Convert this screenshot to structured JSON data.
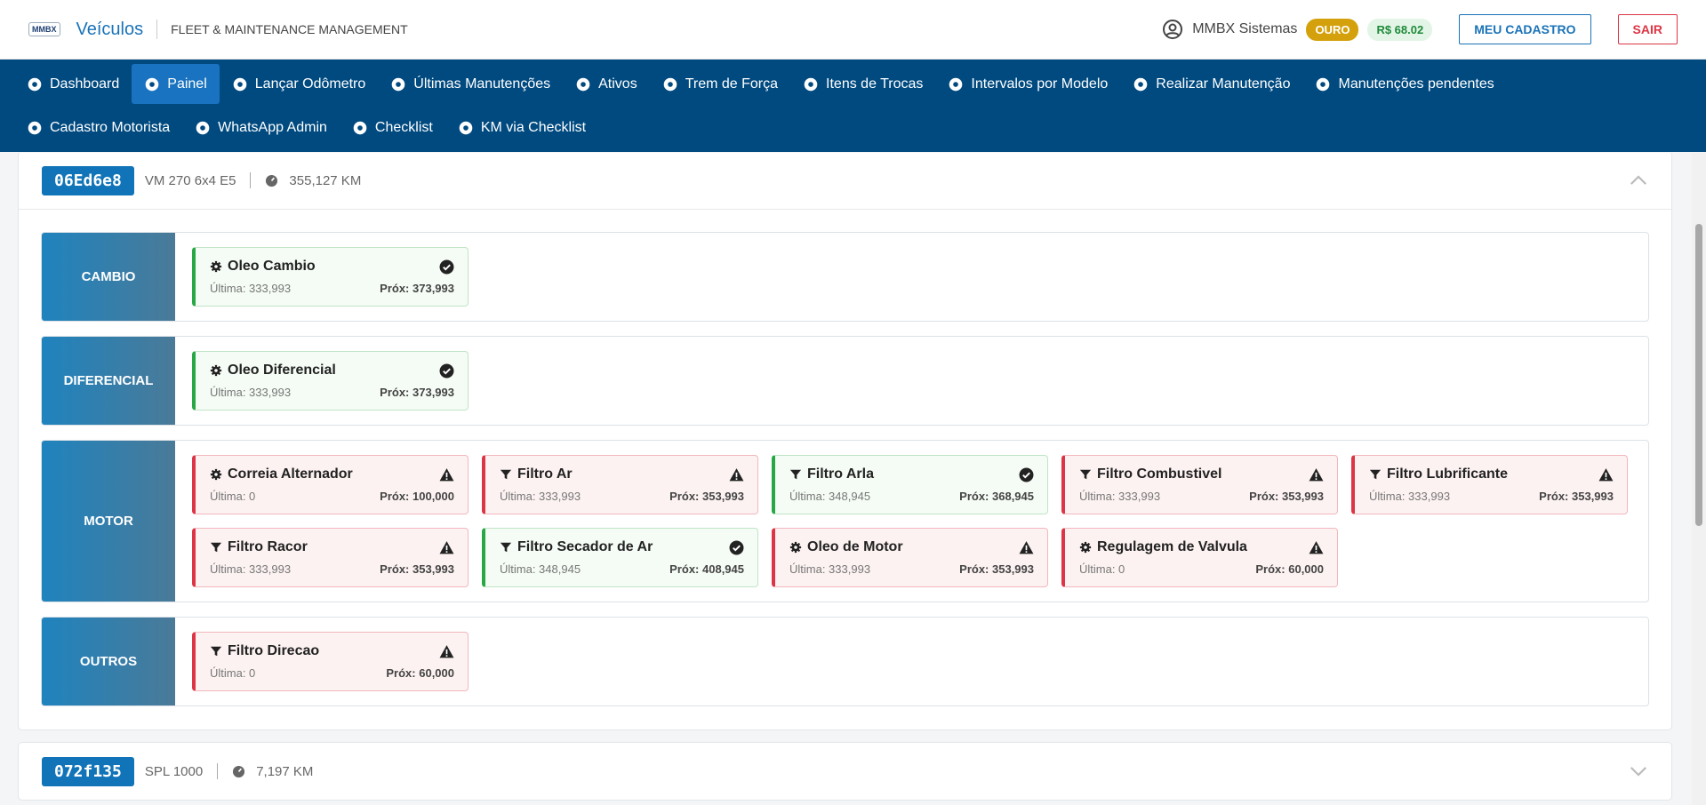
{
  "header": {
    "logo": "MMBX",
    "title": "Veículos",
    "subtitle": "FLEET & MAINTENANCE MANAGEMENT",
    "user": "MMBX Sistemas",
    "badge": "OURO",
    "balance": "R$ 68.02",
    "profile_button": "MEU CADASTRO",
    "logout_button": "SAIR"
  },
  "nav": [
    [
      "Dashboard",
      "Painel",
      "Lançar Odômetro",
      "Últimas Manutenções",
      "Ativos",
      "Trem de Força",
      "Itens de Trocas",
      "Intervalos por Modelo",
      "Realizar Manutenção",
      "Manutenções pendentes"
    ],
    [
      "Cadastro Motorista",
      "WhatsApp Admin",
      "Checklist",
      "KM via Checklist"
    ]
  ],
  "nav_active": "Painel",
  "vehicles": [
    {
      "plate": "06Ed6e8",
      "model": "VM 270 6x4 E5",
      "km": "355,127 KM",
      "groups": [
        {
          "name": "CAMBIO",
          "items": [
            {
              "name": "Oleo Cambio",
              "icon": "gear",
              "status": "ok",
              "last": "Última: 333,993",
              "next": "Próx: 373,993"
            }
          ]
        },
        {
          "name": "DIFERENCIAL",
          "items": [
            {
              "name": "Oleo Diferencial",
              "icon": "gear",
              "status": "ok",
              "last": "Última: 333,993",
              "next": "Próx: 373,993"
            }
          ]
        },
        {
          "name": "MOTOR",
          "items": [
            {
              "name": "Correia Alternador",
              "icon": "gear",
              "status": "alert",
              "last": "Última: 0",
              "next": "Próx: 100,000"
            },
            {
              "name": "Filtro Ar",
              "icon": "filter",
              "status": "alert",
              "last": "Última: 333,993",
              "next": "Próx: 353,993"
            },
            {
              "name": "Filtro Arla",
              "icon": "filter",
              "status": "ok",
              "last": "Última: 348,945",
              "next": "Próx: 368,945"
            },
            {
              "name": "Filtro Combustivel",
              "icon": "filter",
              "status": "alert",
              "last": "Última: 333,993",
              "next": "Próx: 353,993"
            },
            {
              "name": "Filtro Lubrificante",
              "icon": "filter",
              "status": "alert",
              "last": "Última: 333,993",
              "next": "Próx: 353,993"
            },
            {
              "name": "Filtro Racor",
              "icon": "filter",
              "status": "alert",
              "last": "Última: 333,993",
              "next": "Próx: 353,993"
            },
            {
              "name": "Filtro Secador de Ar",
              "icon": "filter",
              "status": "ok",
              "last": "Última: 348,945",
              "next": "Próx: 408,945"
            },
            {
              "name": "Oleo de Motor",
              "icon": "gear",
              "status": "alert",
              "last": "Última: 333,993",
              "next": "Próx: 353,993"
            },
            {
              "name": "Regulagem de Valvula",
              "icon": "gear",
              "status": "alert",
              "last": "Última: 0",
              "next": "Próx: 60,000"
            }
          ]
        },
        {
          "name": "OUTROS",
          "items": [
            {
              "name": "Filtro Direcao",
              "icon": "filter",
              "status": "alert",
              "last": "Última: 0",
              "next": "Próx: 60,000"
            }
          ]
        }
      ]
    },
    {
      "plate": "072f135",
      "model": "SPL 1000",
      "km": "7,197 KM"
    }
  ]
}
